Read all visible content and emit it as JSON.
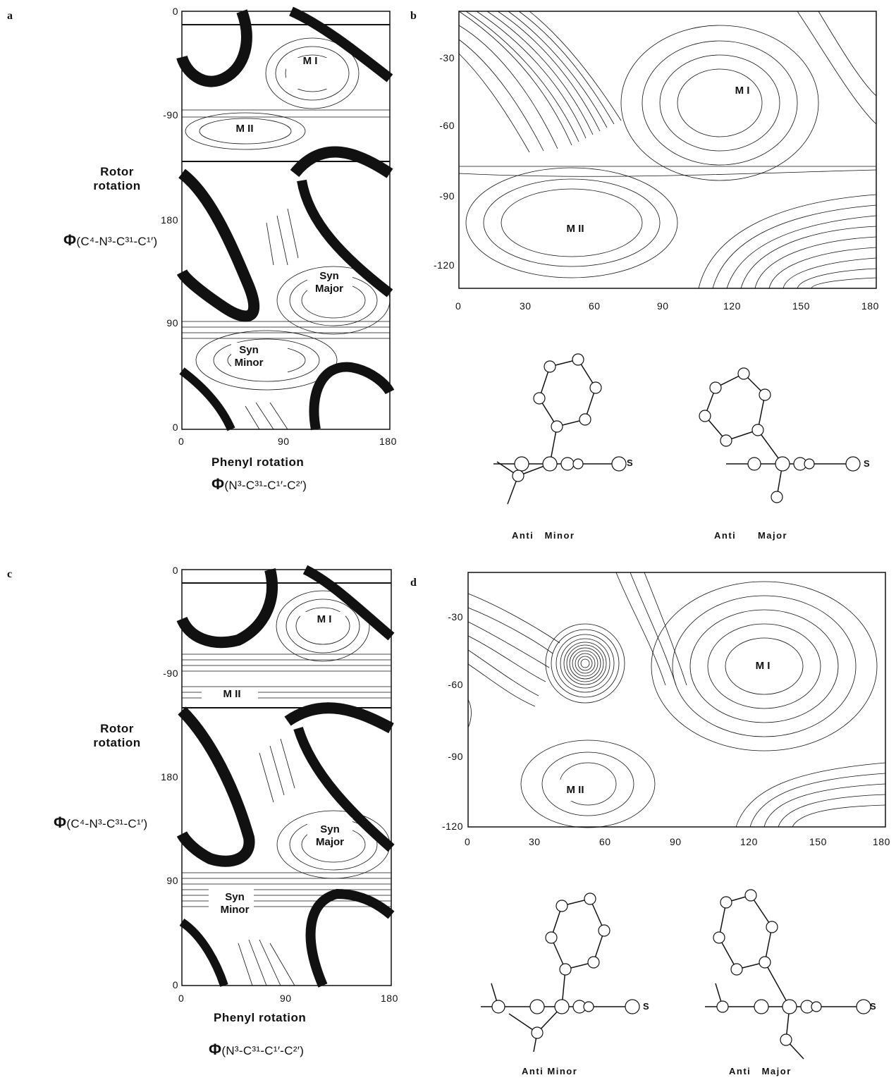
{
  "panels": {
    "a": {
      "letter": "a",
      "y_ticks": [
        "0",
        "-90",
        "180",
        "90",
        "0"
      ],
      "x_ticks": [
        "0",
        "90",
        "180"
      ],
      "y_label": "Rotor\nrotation",
      "y_phi": "(C⁴-N³-C³¹-C¹′)",
      "x_label": "Phenyl rotation",
      "x_phi": "(N³-C³¹-C¹′-C²′)",
      "regions": [
        "M I",
        "M II",
        "Syn\nMajor",
        "Syn\nMinor"
      ]
    },
    "b": {
      "letter": "b",
      "y_ticks": [
        "-30",
        "-60",
        "-90",
        "-120"
      ],
      "x_ticks": [
        "0",
        "30",
        "60",
        "90",
        "120",
        "150",
        "180"
      ],
      "regions": [
        "M I",
        "M II"
      ],
      "molecules": [
        "Anti   Minor",
        "Anti      Major"
      ],
      "atom_label": "S"
    },
    "c": {
      "letter": "c",
      "y_ticks": [
        "0",
        "-90",
        "180",
        "90",
        "0"
      ],
      "x_ticks": [
        "0",
        "90",
        "180"
      ],
      "y_label": "Rotor\nrotation",
      "y_phi": "(C⁴-N³-C³¹-C¹′)",
      "x_label": "Phenyl rotation",
      "x_phi": "(N³-C³¹-C¹′-C²′)",
      "regions": [
        "M I",
        "M II",
        "Syn\nMajor",
        "Syn\nMinor"
      ]
    },
    "d": {
      "letter": "d",
      "y_ticks": [
        "-30",
        "-60",
        "-90",
        "-120"
      ],
      "x_ticks": [
        "0",
        "30",
        "60",
        "90",
        "120",
        "150",
        "180"
      ],
      "regions": [
        "M I",
        "M II"
      ],
      "molecules": [
        "Anti Minor",
        "Anti   Major"
      ],
      "atom_label": "S"
    }
  },
  "phi_symbol": "Φ"
}
